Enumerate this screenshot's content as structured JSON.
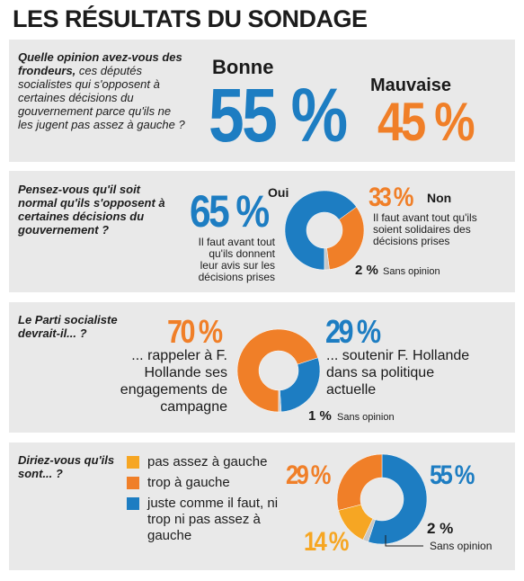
{
  "title": "LES RÉSULTATS DU SONDAGE",
  "colors": {
    "blue": "#1d7dc2",
    "orange": "#f07f28",
    "yellow": "#f6a623",
    "gray": "#c8c8c8",
    "panel": "#e9e9e9"
  },
  "q1": {
    "question_bold": "Quelle opinion avez-vous des frondeurs,",
    "question_rest": " ces députés socialistes qui s'opposent à certaines décisions du gouvernement parce qu'ils ne les jugent pas assez à gauche ?",
    "good_label": "Bonne",
    "good_value": "55 %",
    "bad_label": "Mauvaise",
    "bad_value": "45 %"
  },
  "q2": {
    "question": "Pensez-vous qu'il soit normal qu'ils s'opposent à certaines décisions du gouvernement ?",
    "yes_label": "Oui",
    "yes_value": "65 %",
    "yes_note": "Il faut avant tout qu'ils donnent leur avis sur les décisions prises",
    "no_label": "Non",
    "no_value": "33 %",
    "no_note": "Il faut avant tout qu'ils soient solidaires des décisions prises",
    "none_value": "2 %",
    "none_label": "Sans opinion"
  },
  "q3": {
    "question": "Le Parti socialiste devrait-il... ?",
    "a_value": "70 %",
    "a_text": "... rappeler à F. Hollande ses engagements de campagne",
    "b_value": "29 %",
    "b_text": "... soutenir F. Hollande dans sa politique actuelle",
    "none_value": "1 %",
    "none_label": "Sans opinion"
  },
  "q4": {
    "question": "Diriez-vous qu'ils sont... ?",
    "legend": [
      "pas assez à gauche",
      "trop à gauche",
      "juste comme il faut, ni trop ni pas assez à gauche"
    ],
    "v_yellow": "14 %",
    "v_orange": "29 %",
    "v_blue": "55 %",
    "none_value": "2 %",
    "none_label": "Sans opinion"
  },
  "chart_data": [
    {
      "type": "bar",
      "title": "Quelle opinion avez-vous des frondeurs ?",
      "categories": [
        "Bonne",
        "Mauvaise"
      ],
      "values": [
        55,
        45
      ]
    },
    {
      "type": "pie",
      "title": "Pensez-vous qu'il soit normal qu'ils s'opposent à certaines décisions du gouvernement ?",
      "labels": [
        "Oui",
        "Non",
        "Sans opinion"
      ],
      "values": [
        65,
        33,
        2
      ],
      "colors": [
        "#1d7dc2",
        "#f07f28",
        "#c8c8c8"
      ]
    },
    {
      "type": "pie",
      "title": "Le Parti socialiste devrait-il... ?",
      "labels": [
        "... rappeler à F. Hollande ses engagements de campagne",
        "... soutenir F. Hollande dans sa politique actuelle",
        "Sans opinion"
      ],
      "values": [
        70,
        29,
        1
      ],
      "colors": [
        "#f07f28",
        "#1d7dc2",
        "#c8c8c8"
      ]
    },
    {
      "type": "pie",
      "title": "Diriez-vous qu'ils sont... ?",
      "labels": [
        "juste comme il faut, ni trop ni pas assez à gauche",
        "Sans opinion",
        "pas assez à gauche",
        "trop à gauche"
      ],
      "values": [
        55,
        2,
        14,
        29
      ],
      "colors": [
        "#1d7dc2",
        "#c8c8c8",
        "#f6a623",
        "#f07f28"
      ]
    }
  ]
}
